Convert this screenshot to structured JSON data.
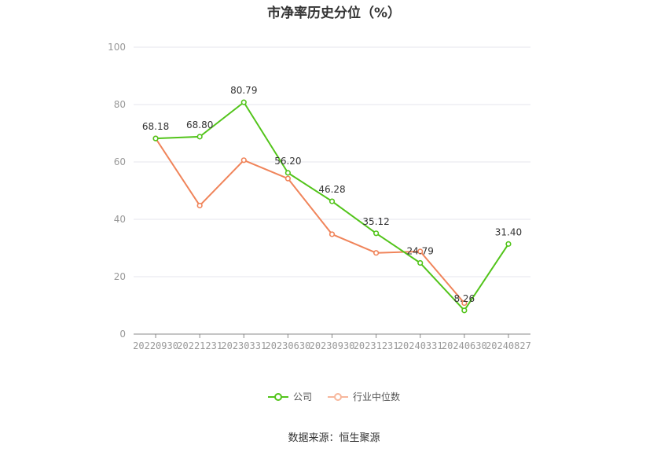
{
  "title": "市净率历史分位（%）",
  "source": "数据来源：恒生聚源",
  "colors": {
    "company": "#52c41a",
    "industry": "#f0845a",
    "grid": "#e4e6ee",
    "axis": "#999999"
  },
  "chart_data": {
    "type": "line",
    "title": "市净率历史分位（%）",
    "xlabel": "",
    "ylabel": "",
    "ylim": [
      0,
      100
    ],
    "yticks": [
      0,
      20,
      40,
      60,
      80,
      100
    ],
    "grid": true,
    "legend_position": "bottom",
    "categories": [
      "20220930",
      "20221231",
      "20230331",
      "20230630",
      "20230930",
      "20231231",
      "20240331",
      "20240630",
      "20240827"
    ],
    "series": [
      {
        "name": "公司",
        "values": [
          68.18,
          68.8,
          80.79,
          56.2,
          46.28,
          35.12,
          24.79,
          8.26,
          31.4
        ],
        "labels": [
          "68.18",
          "68.80",
          "80.79",
          "56.20",
          "46.28",
          "35.12",
          "24.79",
          "8.26",
          "31.40"
        ]
      },
      {
        "name": "行业中位数",
        "values": [
          68.2,
          44.8,
          60.6,
          54.2,
          34.8,
          28.3,
          28.8,
          10.8,
          null
        ]
      }
    ]
  }
}
